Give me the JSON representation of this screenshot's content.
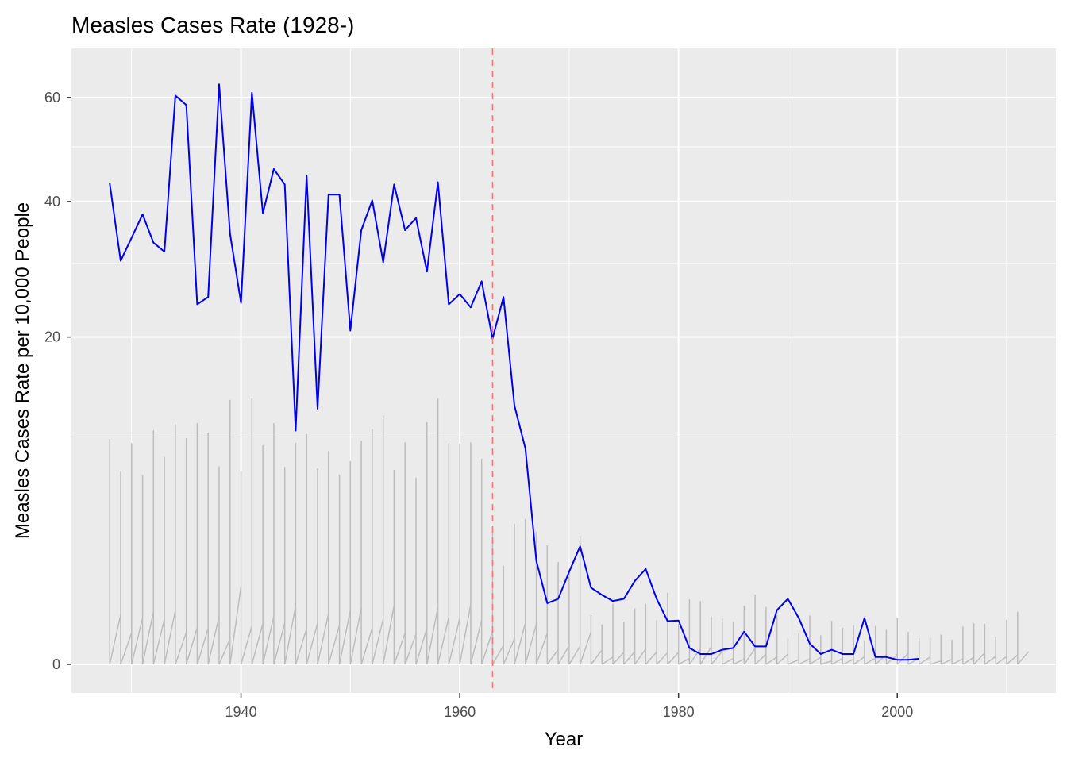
{
  "chart_data": {
    "type": "line",
    "title": "Measles Cases Rate (1928-)",
    "xlabel": "Year",
    "ylabel": "Measles Cases Rate per 10,000 People",
    "xlim": [
      1924.5,
      2014.5
    ],
    "ylim": [
      -1,
      68
    ],
    "y_scale": "sqrt",
    "x_ticks": [
      1940,
      1960,
      1980,
      2000
    ],
    "y_ticks": [
      0,
      20,
      40,
      60
    ],
    "grid": true,
    "background": "#ebebeb",
    "vline": {
      "x": 1963,
      "color": "#f8766d",
      "style": "dashed"
    },
    "series": [
      {
        "color": "#0000ee",
        "x": [
          1928,
          1929,
          1930,
          1931,
          1932,
          1933,
          1934,
          1935,
          1936,
          1937,
          1938,
          1939,
          1940,
          1941,
          1942,
          1943,
          1944,
          1945,
          1946,
          1947,
          1948,
          1949,
          1950,
          1951,
          1952,
          1953,
          1954,
          1955,
          1956,
          1957,
          1958,
          1959,
          1960,
          1961,
          1962,
          1963,
          1964,
          1965,
          1966,
          1967,
          1968,
          1969,
          1970,
          1971,
          1972,
          1973,
          1974,
          1975,
          1976,
          1977,
          1978,
          1979,
          1980,
          1981,
          1982,
          1983,
          1984,
          1985,
          1986,
          1987,
          1988,
          1989,
          1990,
          1991,
          1992,
          1993,
          1994,
          1995,
          1996,
          1997,
          1998,
          1999,
          2000,
          2001,
          2002
        ],
        "y": [
          43.2,
          30.4,
          34.0,
          37.8,
          33.2,
          31.8,
          60.4,
          58.4,
          24.2,
          25.2,
          62.8,
          34.6,
          24.4,
          61.0,
          38.0,
          45.8,
          43.0,
          10.2,
          44.6,
          12.2,
          41.2,
          41.2,
          20.8,
          35.2,
          40.2,
          30.2,
          43.0,
          35.2,
          37.2,
          28.8,
          43.4,
          24.2,
          25.6,
          23.8,
          27.4,
          19.8,
          25.2,
          12.5,
          8.7,
          2.0,
          0.7,
          0.8,
          1.6,
          2.6,
          1.1,
          0.9,
          0.75,
          0.8,
          1.3,
          1.7,
          0.8,
          0.35,
          0.36,
          0.05,
          0.02,
          0.02,
          0.04,
          0.05,
          0.2,
          0.06,
          0.06,
          0.55,
          0.8,
          0.4,
          0.08,
          0.02,
          0.04,
          0.02,
          0.02,
          0.4,
          0.01,
          0.01,
          0.004,
          0.004,
          0.006
        ]
      }
    ]
  }
}
